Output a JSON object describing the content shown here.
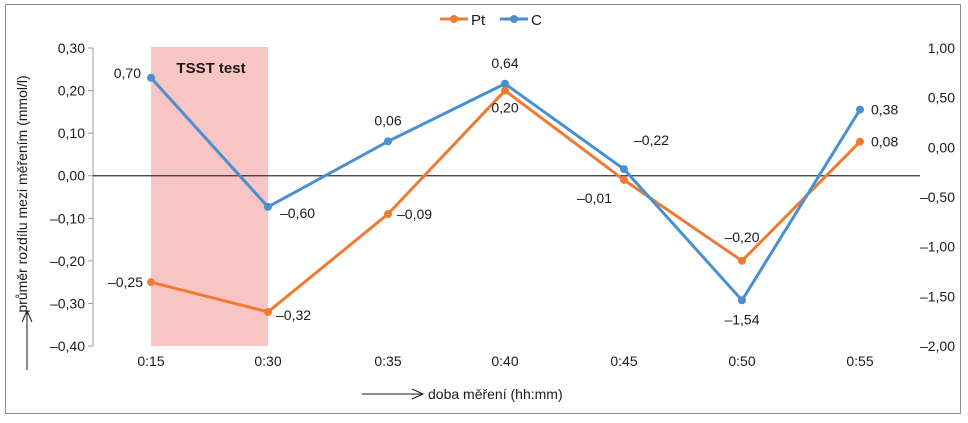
{
  "chart_data": {
    "type": "line",
    "categories": [
      "0:15",
      "0:30",
      "0:35",
      "0:40",
      "0:45",
      "0:50",
      "0:55"
    ],
    "series": [
      {
        "name": "Pt",
        "axis": "left",
        "color": "#ef7b33",
        "values": [
          -0.25,
          -0.32,
          -0.09,
          0.2,
          -0.01,
          -0.2,
          0.08
        ],
        "labels": [
          "–0,25",
          "–0,32",
          "–0,09",
          "0,20",
          "–0,01",
          "–0,20",
          "0,08"
        ]
      },
      {
        "name": "C",
        "axis": "right",
        "color": "#4a8fd0",
        "values": [
          0.7,
          -0.6,
          0.06,
          0.64,
          -0.22,
          -1.54,
          0.38
        ],
        "labels": [
          "0,70",
          "–0,60",
          "0,06",
          "0,64",
          "–0,22",
          "–1,54",
          "0,38"
        ]
      }
    ],
    "left_axis": {
      "range": [
        -0.4,
        0.3
      ],
      "ticks": [
        0.3,
        0.2,
        0.1,
        0.0,
        -0.1,
        -0.2,
        -0.3,
        -0.4
      ],
      "tick_labels": [
        "0,30",
        "0,20",
        "0,10",
        "0,00",
        "–0,10",
        "–0,20",
        "–0,30",
        "–0,40"
      ]
    },
    "right_axis": {
      "range": [
        -2.0,
        1.0
      ],
      "ticks": [
        1.0,
        0.5,
        0.0,
        -0.5,
        -1.0,
        -1.5,
        -2.0
      ],
      "tick_labels": [
        "1,00",
        "0,50",
        "0,00",
        "–0,50",
        "–1,00",
        "–1,50",
        "–2,00"
      ]
    },
    "ylabel": "průměr rozdílu mezi měřením (mmol/l)",
    "xlabel": "doba měření (hh:mm)",
    "highlight": {
      "label": "TSST test",
      "from": "0:15",
      "to": "0:30",
      "color": "#f9c4c4"
    },
    "legend": {
      "placement": "top-center",
      "entries": [
        "Pt",
        "C"
      ]
    },
    "grid": false
  }
}
